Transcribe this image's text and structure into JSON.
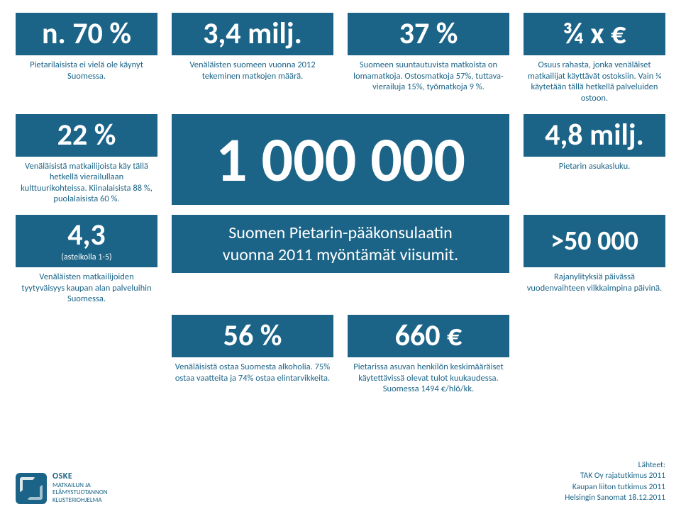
{
  "theme": {
    "tile_bg": "#1b6487",
    "tile_fg": "#ffffff",
    "caption_color": "#1b6487",
    "page_bg": "#ffffff",
    "big_font_size_pt": 32,
    "huge_font_size_pt": 66,
    "caption_font_size_pt": 9.5,
    "source_font_size_pt": 8.5,
    "font_family": "Calibri"
  },
  "row1": [
    {
      "value": "n. 70 %",
      "caption": "Pietarilaisista ei vielä ole käynyt Suomessa."
    },
    {
      "value": "3,4 milj.",
      "caption": "Venäläisten suomeen vuonna 2012 tekeminen matkojen määrä."
    },
    {
      "value": "37 %",
      "caption": "Suomeen suuntautuvista matkoista on lomamatkoja. Ostosmatkoja 57%, tuttava-vierailuja 15%, työmatkoja 9 %."
    },
    {
      "value": "¾ x €",
      "caption": "Osuus rahasta, jonka venäläiset matkailijat käyttävät ostoksiin. Vain ¼ käytetään tällä hetkellä palveluiden ostoon."
    }
  ],
  "row2": {
    "left": {
      "value": "22 %",
      "caption": "Venäläisistä matkailijoista käy tällä hetkellä vierailullaan kulttuurikohteissa. Kiinalaisista 88 %, puolalaisista 60 %."
    },
    "center": {
      "value": "1 000 000"
    },
    "right": {
      "value": "4,8 milj.",
      "caption": "Pietarin asukasluku."
    }
  },
  "row3": {
    "left": {
      "value": "4,3",
      "sub": "(asteikolla 1-5)",
      "caption": "Venäläisten matkailijoiden tyytyväisyys kaupan alan palveluihin Suomessa."
    },
    "center_line1": "Suomen Pietarin-pääkonsulaatin",
    "center_line2": "vuonna 2011 myöntämät viisumit.",
    "right": {
      "value": ">50 000",
      "caption": "Rajanylityksiä päivässä vuodenvaihteen vilkkaimpina päivinä."
    }
  },
  "row4": {
    "c1": {
      "value": "56 %",
      "caption": "Venäläisistä ostaa Suomesta alkoholia. 75% ostaa vaatteita ja 74% ostaa elintarvikkeita."
    },
    "c2": {
      "value": "660 €",
      "caption": "Pietarissa asuvan henkilön keskimääräiset käytettävissä olevat tulot kuukaudessa. Suomessa 1494 €/hlö/kk."
    }
  },
  "logo": {
    "brand": "OSKE",
    "sub1": "MATKAILUN JA",
    "sub2": "ELÄMYSTUOTANNON",
    "sub3": "KLUSTERIOHJELMA"
  },
  "sources": {
    "label": "Lähteet:",
    "lines": [
      "TAK Oy rajatutkimus 2011",
      "Kaupan liiton tutkimus 2011",
      "Helsingin Sanomat 18.12.2011"
    ]
  }
}
